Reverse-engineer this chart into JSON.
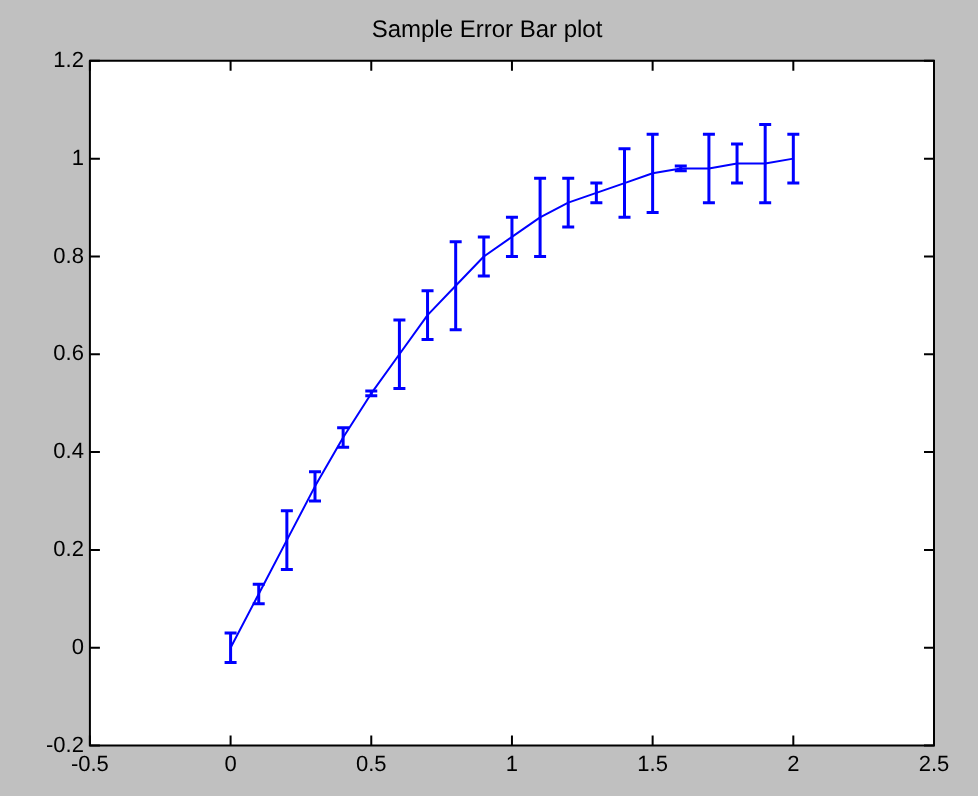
{
  "chart_data": {
    "type": "line",
    "title": "Sample Error Bar plot",
    "x": [
      0,
      0.1,
      0.2,
      0.3,
      0.4,
      0.5,
      0.6,
      0.7,
      0.8,
      0.9,
      1,
      1.1,
      1.2,
      1.3,
      1.4,
      1.5,
      1.6,
      1.7,
      1.8,
      1.9,
      2
    ],
    "series": [
      {
        "color": "#0000ff",
        "values": [
          0,
          0.11,
          0.22,
          0.33,
          0.43,
          0.52,
          0.6,
          0.68,
          0.74,
          0.8,
          0.84,
          0.88,
          0.91,
          0.93,
          0.95,
          0.97,
          0.98,
          0.98,
          0.99,
          0.99,
          1.0
        ],
        "errors": [
          0.03,
          0.02,
          0.06,
          0.03,
          0.02,
          0.005,
          0.07,
          0.05,
          0.09,
          0.04,
          0.04,
          0.08,
          0.05,
          0.02,
          0.07,
          0.08,
          0.005,
          0.07,
          0.04,
          0.08,
          0.05
        ]
      }
    ],
    "xlim": [
      -0.5,
      2.5
    ],
    "xticks": [
      -0.5,
      0,
      0.5,
      1,
      1.5,
      2,
      2.5
    ],
    "ylim": [
      -0.2,
      1.2
    ],
    "yticks": [
      -0.2,
      0,
      0.2,
      0.4,
      0.6,
      0.8,
      1,
      1.2
    ],
    "grid": false,
    "legend": false,
    "marker": "none",
    "line_style": "solid"
  }
}
